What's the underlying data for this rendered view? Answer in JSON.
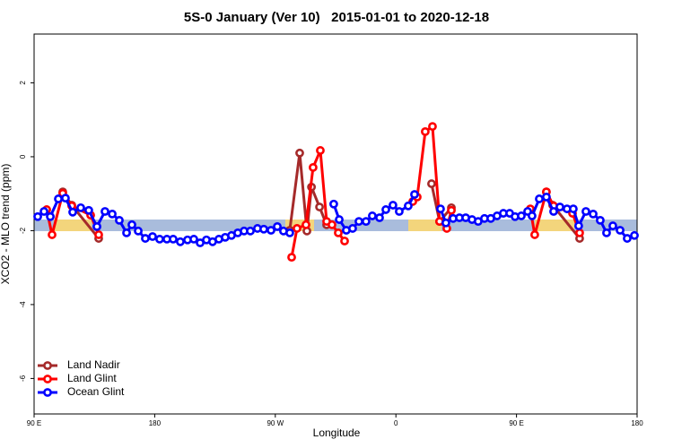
{
  "chart_data": {
    "type": "line",
    "title": "5S-0 January (Ver 10)   2015-01-01 to 2020-12-18",
    "xlabel": "Longitude",
    "ylabel": "XCO2 - MLO trend (ppm)",
    "xlim": [
      90,
      540
    ],
    "xticks": [
      {
        "value": 90,
        "label": "90 E"
      },
      {
        "value": 180,
        "label": "180"
      },
      {
        "value": 270,
        "label": "90 W"
      },
      {
        "value": 360,
        "label": "0"
      },
      {
        "value": 450,
        "label": "90 E"
      },
      {
        "value": 540,
        "label": "180"
      }
    ],
    "ylim": [
      -6.96,
      3.32
    ],
    "yticks": [
      -6,
      -4,
      -2,
      0,
      2
    ],
    "legend": "bottomleft",
    "series": [
      {
        "name": "Land Nadir",
        "color": "#a52a2a",
        "x": [
          111.4,
          118.1,
          138.2,
          null,
          280.8,
          288.2,
          293.6,
          297.0,
          303.0,
          308.3,
          null,
          386.6,
          392.6,
          401.4,
          null,
          472.3,
          477.0,
          497.1
        ],
        "values": [
          -0.95,
          -1.31,
          -2.21,
          null,
          -1.99,
          0.1,
          -2.01,
          -0.82,
          -1.36,
          -1.84,
          null,
          -0.73,
          -1.75,
          -1.38,
          null,
          -0.95,
          -1.31,
          -2.21
        ]
      },
      {
        "name": "Land Glint",
        "color": "#ff0000",
        "x": [
          99.4,
          103.4,
          111.4,
          118.1,
          132.2,
          138.2,
          null,
          282.2,
          286.2,
          292.9,
          298.2,
          303.6,
          308.3,
          312.3,
          317.0,
          321.7,
          null,
          372.6,
          375.9,
          381.9,
          387.3,
          392.6,
          398.0,
          401.4,
          null,
          460.3,
          463.6,
          472.3,
          477.7,
          491.8,
          497.1
        ],
        "values": [
          -1.43,
          -2.11,
          -0.99,
          -1.33,
          -1.58,
          -2.11,
          null,
          -2.72,
          -1.94,
          -1.84,
          -0.29,
          0.17,
          -1.75,
          -1.84,
          -2.06,
          -2.28,
          null,
          -1.21,
          -1.09,
          0.68,
          0.82,
          -1.75,
          -1.94,
          -1.45,
          null,
          -1.41,
          -2.11,
          -0.95,
          -1.33,
          -1.53,
          -2.06
        ]
      },
      {
        "name": "Ocean Glint",
        "color": "#0000ff",
        "x": [
          92.7,
          97.4,
          102.1,
          108.1,
          113.4,
          118.8,
          124.8,
          130.8,
          136.9,
          142.9,
          148.3,
          153.6,
          159.0,
          163.0,
          167.7,
          173.0,
          178.4,
          183.7,
          189.1,
          193.8,
          199.1,
          204.5,
          209.2,
          213.9,
          218.6,
          223.2,
          227.9,
          232.6,
          237.3,
          242.0,
          246.7,
          251.4,
          256.7,
          261.4,
          266.8,
          271.5,
          276.1,
          280.8,
          null,
          313.6,
          317.7,
          323.0,
          327.7,
          332.4,
          337.7,
          342.4,
          347.8,
          352.5,
          357.8,
          362.5,
          369.2,
          373.9,
          null,
          393.3,
          397.3,
          402.7,
          407.4,
          412.1,
          416.8,
          421.4,
          426.1,
          430.8,
          435.5,
          440.2,
          444.9,
          448.9,
          453.6,
          458.3,
          461.6,
          467.0,
          472.3,
          477.7,
          482.4,
          487.7,
          492.4,
          496.4,
          501.8,
          507.2,
          512.5,
          517.2,
          521.9,
          527.3,
          532.6,
          538.0
        ],
        "values": [
          -1.62,
          -1.48,
          -1.62,
          -1.14,
          -1.12,
          -1.5,
          -1.38,
          -1.45,
          -1.89,
          -1.48,
          -1.55,
          -1.72,
          -2.06,
          -1.84,
          -2.01,
          -2.21,
          -2.16,
          -2.23,
          -2.23,
          -2.23,
          -2.3,
          -2.25,
          -2.23,
          -2.33,
          -2.25,
          -2.3,
          -2.23,
          -2.18,
          -2.13,
          -2.06,
          -2.01,
          -2.01,
          -1.94,
          -1.96,
          -1.99,
          -1.89,
          -2.01,
          -2.06,
          null,
          -1.28,
          -1.7,
          -1.99,
          -1.94,
          -1.75,
          -1.75,
          -1.6,
          -1.65,
          -1.43,
          -1.31,
          -1.48,
          -1.33,
          -1.02,
          null,
          -1.41,
          -1.79,
          -1.67,
          -1.65,
          -1.65,
          -1.7,
          -1.75,
          -1.67,
          -1.67,
          -1.6,
          -1.53,
          -1.53,
          -1.62,
          -1.6,
          -1.48,
          -1.6,
          -1.14,
          -1.09,
          -1.48,
          -1.36,
          -1.41,
          -1.41,
          -1.87,
          -1.48,
          -1.55,
          -1.72,
          -2.06,
          -1.87,
          -1.99,
          -2.21,
          -2.13
        ]
      }
    ]
  }
}
